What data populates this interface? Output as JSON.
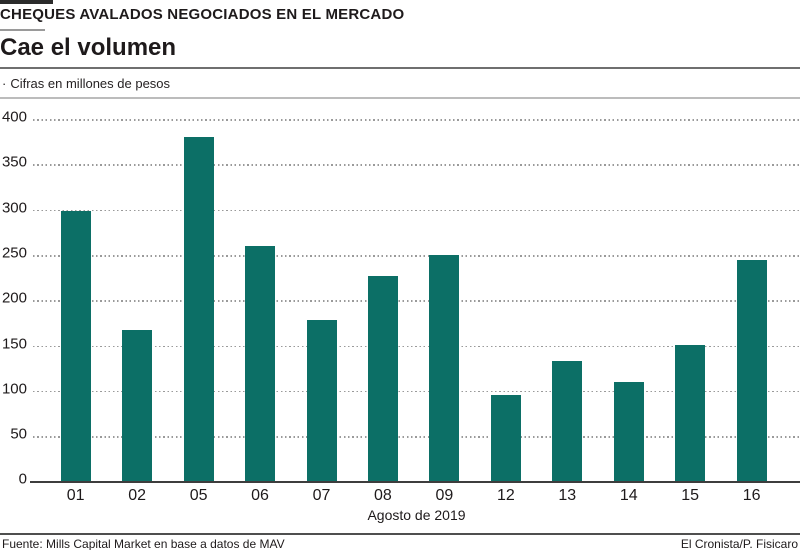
{
  "header": {
    "kicker": "CHEQUES AVALADOS NEGOCIADOS EN EL MERCADO",
    "title": "Cae el volumen",
    "subtitle_bullet": "·",
    "subtitle": "Cifras en millones de pesos"
  },
  "chart_data": {
    "type": "bar",
    "title": "Cae el volumen",
    "subtitle": "Cifras en millones de pesos",
    "categories": [
      "01",
      "02",
      "05",
      "06",
      "07",
      "08",
      "09",
      "12",
      "13",
      "14",
      "15",
      "16"
    ],
    "values": [
      298,
      167,
      380,
      260,
      178,
      226,
      250,
      95,
      132,
      109,
      150,
      244
    ],
    "xlabel": "Agosto de 2019",
    "ylabel": "",
    "ylim": [
      0,
      400
    ],
    "yticks": [
      400,
      350,
      300,
      250,
      200,
      150,
      100,
      50,
      0
    ],
    "bar_color": "#0c6f66",
    "grid": "dotted-horizontal",
    "legend": "none"
  },
  "footer": {
    "source": "Fuente: Mills Capital Market en base a datos de MAV",
    "credit": "El Cronista/P. Fisicaro"
  }
}
